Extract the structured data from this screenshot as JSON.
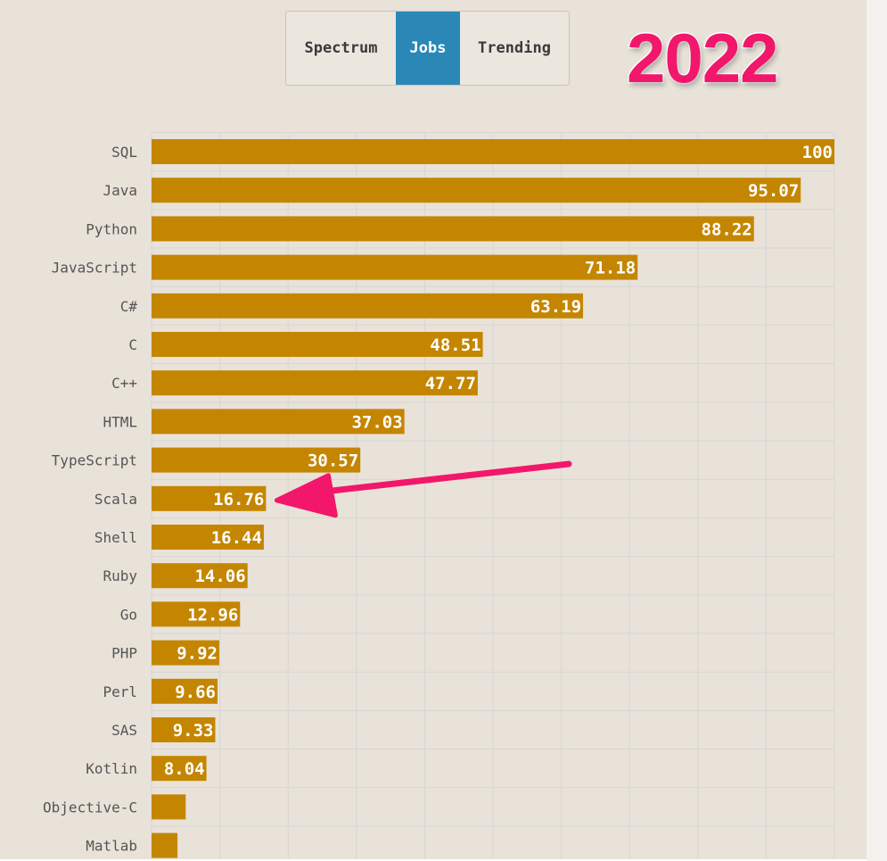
{
  "tabs": [
    {
      "label": "Spectrum",
      "active": false
    },
    {
      "label": "Jobs",
      "active": true
    },
    {
      "label": "Trending",
      "active": false
    }
  ],
  "year_label": "2022",
  "colors": {
    "background": "#e8e2d9",
    "bar": "#c48600",
    "active_tab": "#2b88b6",
    "arrow": "#f2176a",
    "grid": "#d6d6d6"
  },
  "chart_data": {
    "type": "bar",
    "orientation": "horizontal",
    "categories": [
      "SQL",
      "Java",
      "Python",
      "JavaScript",
      "C#",
      "C",
      "C++",
      "HTML",
      "TypeScript",
      "Scala",
      "Shell",
      "Ruby",
      "Go",
      "PHP",
      "Perl",
      "SAS",
      "Kotlin",
      "Objective-C",
      "Matlab"
    ],
    "values": [
      100,
      95.07,
      88.22,
      71.18,
      63.19,
      48.51,
      47.77,
      37.03,
      30.57,
      16.76,
      16.44,
      14.06,
      12.96,
      9.92,
      9.66,
      9.33,
      8.04,
      5.0,
      3.8
    ],
    "value_labels": [
      "100",
      "95.07",
      "88.22",
      "71.18",
      "63.19",
      "48.51",
      "47.77",
      "37.03",
      "30.57",
      "16.76",
      "16.44",
      "14.06",
      "12.96",
      "9.92",
      "9.66",
      "9.33",
      "8.04",
      "",
      ""
    ],
    "xlim": [
      0,
      100
    ],
    "grid": true,
    "highlighted_category": "Scala",
    "annotation": "arrow pointing to Scala"
  }
}
